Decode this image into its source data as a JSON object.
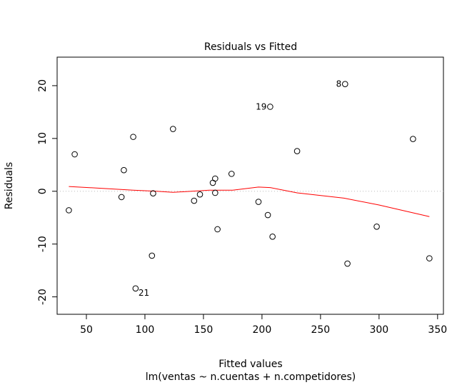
{
  "chart_data": {
    "type": "scatter",
    "title": "Residuals vs Fitted",
    "xlabel": "Fitted values",
    "subtitle": "lm(ventas ~ n.cuentas + n.competidores)",
    "ylabel": "Residuals",
    "xlim": [
      25,
      355
    ],
    "ylim": [
      -23.3,
      25.4
    ],
    "x_ticks": [
      50,
      100,
      150,
      200,
      250,
      300,
      350
    ],
    "x_tick_labels": [
      "50",
      "100",
      "150",
      "200",
      "250",
      "300",
      "350"
    ],
    "y_ticks": [
      -20,
      -10,
      0,
      10,
      20
    ],
    "y_tick_labels": [
      "-20",
      "-10",
      "0",
      "10",
      "20"
    ],
    "grid": false,
    "reference_line": {
      "y": 0,
      "style": "dotted",
      "color": "#bbbbbb"
    },
    "points": [
      {
        "x": 35,
        "y": -3.6
      },
      {
        "x": 40,
        "y": 7.0
      },
      {
        "x": 80,
        "y": -1.1
      },
      {
        "x": 82,
        "y": 4.0
      },
      {
        "x": 90,
        "y": 10.3
      },
      {
        "x": 92,
        "y": -18.4,
        "label": "21"
      },
      {
        "x": 106,
        "y": -12.2
      },
      {
        "x": 107,
        "y": -0.4
      },
      {
        "x": 124,
        "y": 11.8
      },
      {
        "x": 142,
        "y": -1.8
      },
      {
        "x": 147,
        "y": -0.6
      },
      {
        "x": 158,
        "y": 1.6
      },
      {
        "x": 160,
        "y": 2.4
      },
      {
        "x": 160,
        "y": -0.3
      },
      {
        "x": 162,
        "y": -7.2
      },
      {
        "x": 174,
        "y": 3.3
      },
      {
        "x": 197,
        "y": -2.0
      },
      {
        "x": 205,
        "y": -4.5
      },
      {
        "x": 207,
        "y": 16.0,
        "label": "19"
      },
      {
        "x": 209,
        "y": -8.6
      },
      {
        "x": 230,
        "y": 7.6
      },
      {
        "x": 271,
        "y": 20.3,
        "label": "8"
      },
      {
        "x": 273,
        "y": -13.7
      },
      {
        "x": 298,
        "y": -6.7
      },
      {
        "x": 329,
        "y": 9.9
      },
      {
        "x": 343,
        "y": -12.7
      }
    ],
    "smoother": {
      "color": "#ff0000",
      "x": [
        35,
        60,
        90,
        110,
        124,
        140,
        155,
        175,
        197,
        207,
        230,
        270,
        300,
        343
      ],
      "y": [
        0.9,
        0.6,
        0.2,
        0.0,
        -0.2,
        0.0,
        0.2,
        0.2,
        0.8,
        0.7,
        -0.3,
        -1.3,
        -2.6,
        -4.8
      ]
    }
  }
}
